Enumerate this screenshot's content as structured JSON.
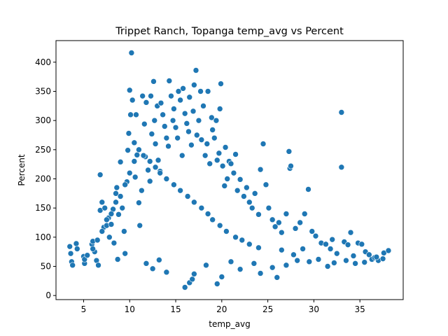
{
  "chart_data": {
    "type": "scatter",
    "title": "Trippet Ranch, Topanga temp_avg vs Percent",
    "xlabel": "temp_avg",
    "ylabel": "Percent",
    "xlim": [
      2.0,
      39.7
    ],
    "ylim": [
      -7,
      437
    ],
    "xticks": [
      5,
      10,
      15,
      20,
      25,
      30,
      35
    ],
    "yticks": [
      0,
      50,
      100,
      150,
      200,
      250,
      300,
      350,
      400
    ],
    "grid": false,
    "legend": "none",
    "point_color": "#1f77b4",
    "points": [
      [
        3.5,
        84
      ],
      [
        3.6,
        72
      ],
      [
        3.7,
        58
      ],
      [
        3.8,
        52
      ],
      [
        4.2,
        89
      ],
      [
        4.3,
        80
      ],
      [
        5.0,
        67
      ],
      [
        5.1,
        55
      ],
      [
        5.1,
        62
      ],
      [
        5.4,
        69
      ],
      [
        5.9,
        88
      ],
      [
        6.0,
        93
      ],
      [
        6.2,
        75
      ],
      [
        6.4,
        60
      ],
      [
        6.6,
        52
      ],
      [
        6.8,
        146
      ],
      [
        6.8,
        207
      ],
      [
        7.0,
        160
      ],
      [
        7.2,
        117
      ],
      [
        7.3,
        150
      ],
      [
        7.5,
        120
      ],
      [
        7.7,
        133
      ],
      [
        7.8,
        100
      ],
      [
        8.0,
        122
      ],
      [
        8.2,
        148
      ],
      [
        8.3,
        90
      ],
      [
        8.5,
        175
      ],
      [
        8.6,
        185
      ],
      [
        8.7,
        62
      ],
      [
        8.8,
        139
      ],
      [
        9.0,
        229
      ],
      [
        9.2,
        150
      ],
      [
        9.4,
        110
      ],
      [
        9.5,
        72
      ],
      [
        9.7,
        195
      ],
      [
        9.8,
        249
      ],
      [
        9.9,
        278
      ],
      [
        10.0,
        352
      ],
      [
        10.1,
        310
      ],
      [
        10.2,
        416
      ],
      [
        10.3,
        335
      ],
      [
        10.5,
        262
      ],
      [
        10.6,
        203
      ],
      [
        10.7,
        310
      ],
      [
        10.8,
        241
      ],
      [
        11.0,
        159
      ],
      [
        11.1,
        120
      ],
      [
        11.3,
        180
      ],
      [
        11.4,
        342
      ],
      [
        11.6,
        294
      ],
      [
        11.7,
        238
      ],
      [
        11.8,
        331
      ],
      [
        12.0,
        215
      ],
      [
        12.2,
        196
      ],
      [
        12.3,
        342
      ],
      [
        12.4,
        277
      ],
      [
        12.6,
        367
      ],
      [
        12.7,
        300
      ],
      [
        12.8,
        260
      ],
      [
        13.0,
        325
      ],
      [
        13.1,
        232
      ],
      [
        13.3,
        213
      ],
      [
        13.4,
        330
      ],
      [
        13.6,
        310
      ],
      [
        13.8,
        290
      ],
      [
        14.0,
        270
      ],
      [
        14.2,
        256
      ],
      [
        14.3,
        368
      ],
      [
        14.5,
        342
      ],
      [
        14.7,
        300
      ],
      [
        14.8,
        320
      ],
      [
        15.0,
        288
      ],
      [
        15.2,
        270
      ],
      [
        15.3,
        350
      ],
      [
        15.5,
        335
      ],
      [
        15.7,
        240
      ],
      [
        15.8,
        355
      ],
      [
        16.0,
        312
      ],
      [
        16.2,
        295
      ],
      [
        16.4,
        281
      ],
      [
        16.5,
        340
      ],
      [
        16.7,
        258
      ],
      [
        16.9,
        316
      ],
      [
        17.0,
        361
      ],
      [
        17.2,
        386
      ],
      [
        17.3,
        275
      ],
      [
        17.5,
        300
      ],
      [
        17.7,
        350
      ],
      [
        17.8,
        267
      ],
      [
        18.0,
        325
      ],
      [
        18.2,
        240
      ],
      [
        18.4,
        260
      ],
      [
        18.5,
        350
      ],
      [
        18.7,
        226
      ],
      [
        18.9,
        305
      ],
      [
        19.0,
        284
      ],
      [
        19.2,
        270
      ],
      [
        19.4,
        300
      ],
      [
        19.5,
        232
      ],
      [
        19.7,
        244
      ],
      [
        19.8,
        320
      ],
      [
        19.9,
        363
      ],
      [
        20.1,
        222
      ],
      [
        20.3,
        188
      ],
      [
        20.4,
        254
      ],
      [
        20.6,
        200
      ],
      [
        20.8,
        230
      ],
      [
        21.0,
        226
      ],
      [
        21.3,
        210
      ],
      [
        21.5,
        242
      ],
      [
        21.7,
        180
      ],
      [
        22.0,
        199
      ],
      [
        22.4,
        170
      ],
      [
        22.7,
        185
      ],
      [
        23.0,
        160
      ],
      [
        23.3,
        150
      ],
      [
        23.6,
        175
      ],
      [
        24.0,
        139
      ],
      [
        24.2,
        216
      ],
      [
        24.5,
        260
      ],
      [
        24.8,
        190
      ],
      [
        25.1,
        150
      ],
      [
        25.5,
        130
      ],
      [
        25.8,
        118
      ],
      [
        26.2,
        125
      ],
      [
        26.5,
        108
      ],
      [
        27.0,
        140
      ],
      [
        27.3,
        247
      ],
      [
        27.4,
        218
      ],
      [
        27.5,
        222
      ],
      [
        28.0,
        115
      ],
      [
        28.5,
        125
      ],
      [
        29.0,
        140
      ],
      [
        29.4,
        182
      ],
      [
        29.8,
        110
      ],
      [
        30.2,
        102
      ],
      [
        30.8,
        90
      ],
      [
        31.3,
        88
      ],
      [
        31.8,
        80
      ],
      [
        32.0,
        96
      ],
      [
        32.5,
        72
      ],
      [
        33.0,
        314
      ],
      [
        33.0,
        220
      ],
      [
        33.3,
        92
      ],
      [
        33.7,
        87
      ],
      [
        34.0,
        108
      ],
      [
        34.3,
        68
      ],
      [
        34.8,
        90
      ],
      [
        35.2,
        88
      ],
      [
        35.6,
        75
      ],
      [
        36.0,
        70
      ],
      [
        36.3,
        62
      ],
      [
        36.6,
        65
      ],
      [
        37.0,
        60
      ],
      [
        37.5,
        63
      ],
      [
        37.6,
        73
      ],
      [
        38.1,
        77
      ],
      [
        16.0,
        14
      ],
      [
        16.5,
        22
      ],
      [
        16.8,
        28
      ],
      [
        17.0,
        37
      ],
      [
        18.3,
        52
      ],
      [
        19.5,
        20
      ],
      [
        20.0,
        32
      ],
      [
        22.0,
        45
      ],
      [
        24.2,
        38
      ],
      [
        26.0,
        31
      ],
      [
        12.5,
        46
      ],
      [
        14.0,
        40
      ],
      [
        11.8,
        55
      ],
      [
        13.2,
        61
      ],
      [
        21.0,
        58
      ],
      [
        23.5,
        55
      ],
      [
        25.5,
        48
      ],
      [
        27.0,
        52
      ],
      [
        28.2,
        60
      ],
      [
        29.5,
        58
      ],
      [
        30.5,
        62
      ],
      [
        31.5,
        50
      ],
      [
        32.2,
        56
      ],
      [
        33.5,
        60
      ],
      [
        34.5,
        55
      ],
      [
        35.5,
        57
      ],
      [
        36.8,
        66
      ],
      [
        27.8,
        70
      ],
      [
        28.8,
        80
      ],
      [
        26.5,
        78
      ],
      [
        24.0,
        82
      ],
      [
        23.0,
        88
      ],
      [
        22.2,
        95
      ],
      [
        21.5,
        100
      ],
      [
        20.5,
        110
      ],
      [
        19.8,
        120
      ],
      [
        19.0,
        130
      ],
      [
        18.5,
        140
      ],
      [
        17.8,
        150
      ],
      [
        17.0,
        160
      ],
      [
        16.3,
        170
      ],
      [
        15.5,
        180
      ],
      [
        14.8,
        190
      ],
      [
        14.0,
        200
      ],
      [
        13.3,
        210
      ],
      [
        12.8,
        220
      ],
      [
        12.2,
        230
      ],
      [
        11.5,
        240
      ],
      [
        11.0,
        250
      ],
      [
        10.5,
        230
      ],
      [
        10.0,
        210
      ],
      [
        9.5,
        190
      ],
      [
        9.0,
        170
      ],
      [
        8.5,
        160
      ],
      [
        8.0,
        140
      ],
      [
        7.5,
        130
      ],
      [
        7.0,
        110
      ],
      [
        6.5,
        95
      ],
      [
        6.0,
        80
      ]
    ]
  }
}
